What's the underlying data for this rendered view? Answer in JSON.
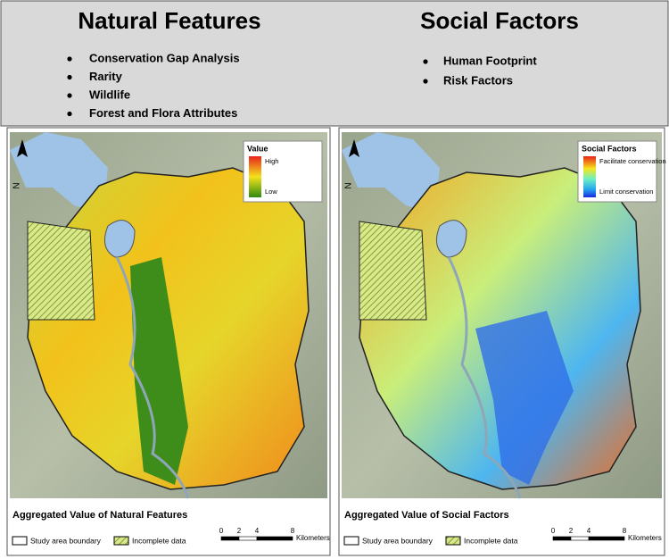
{
  "header": {
    "left": {
      "title": "Natural Features",
      "items": [
        "Conservation Gap Analysis",
        "Rarity",
        "Wildlife",
        "Forest and Flora Attributes"
      ]
    },
    "right": {
      "title": "Social Factors",
      "items": [
        "Human Footprint",
        "Risk Factors"
      ]
    }
  },
  "panels": [
    {
      "legend": {
        "title": "Value",
        "high": "High",
        "low": "Low"
      },
      "north": "N",
      "caption": "Aggregated Value of Natural Features",
      "boundary_label": "Study area boundary",
      "incomplete_label": "Incomplete data",
      "scale": {
        "ticks": [
          0,
          2,
          4,
          8
        ],
        "unit": "Kilometers"
      }
    },
    {
      "legend": {
        "title": "Social Factors",
        "high": "Facilitate conservation",
        "low": "Limit conservation"
      },
      "north": "N",
      "caption": "Aggregated Value of Social Factors",
      "boundary_label": "Study area boundary",
      "incomplete_label": "Incomplete data",
      "scale": {
        "ticks": [
          0,
          2,
          4,
          8
        ],
        "unit": "Kilometers"
      }
    }
  ]
}
